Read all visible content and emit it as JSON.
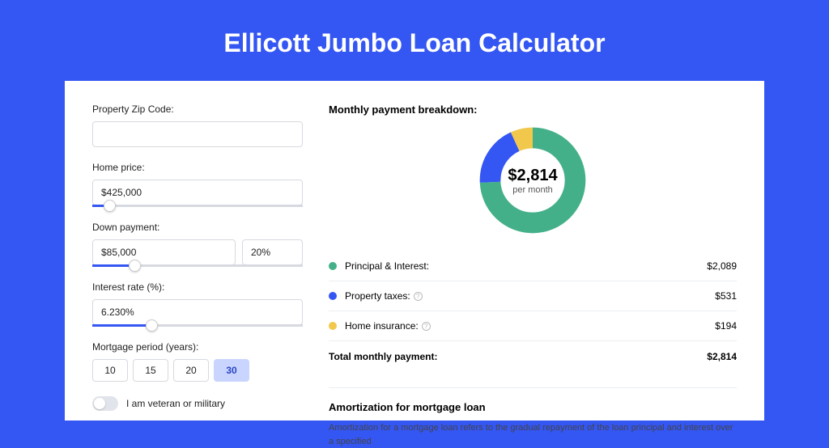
{
  "page": {
    "title": "Ellicott Jumbo Loan Calculator",
    "background_color": "#3456f3"
  },
  "form": {
    "zip": {
      "label": "Property Zip Code:",
      "value": ""
    },
    "price": {
      "label": "Home price:",
      "value": "$425,000",
      "slider_pct": 8
    },
    "down": {
      "label": "Down payment:",
      "value": "$85,000",
      "pct_value": "20%",
      "slider_pct": 20
    },
    "rate": {
      "label": "Interest rate (%):",
      "value": "6.230%",
      "slider_pct": 28
    },
    "period": {
      "label": "Mortgage period (years):",
      "options": [
        "10",
        "15",
        "20",
        "30"
      ],
      "selected": "30"
    },
    "veteran": {
      "label": "I am veteran or military",
      "checked": false
    }
  },
  "breakdown": {
    "title": "Monthly payment breakdown:",
    "center_amount": "$2,814",
    "center_sub": "per month",
    "items": [
      {
        "label": "Principal & Interest:",
        "value": "$2,089",
        "color": "#44b08a",
        "pct": 74.2,
        "info": false
      },
      {
        "label": "Property taxes:",
        "value": "$531",
        "color": "#3456f3",
        "pct": 18.9,
        "info": true
      },
      {
        "label": "Home insurance:",
        "value": "$194",
        "color": "#f1c84c",
        "pct": 6.9,
        "info": true
      }
    ],
    "total": {
      "label": "Total monthly payment:",
      "value": "$2,814"
    }
  },
  "amortization": {
    "title": "Amortization for mortgage loan",
    "text": "Amortization for a mortgage loan refers to the gradual repayment of the loan principal and interest over a specified"
  },
  "styling": {
    "card_bg": "#ffffff",
    "input_border": "#d6d9e0",
    "slider_fill": "#3456f3",
    "active_period_bg": "#c9d5ff",
    "donut_stroke_width": 22
  }
}
